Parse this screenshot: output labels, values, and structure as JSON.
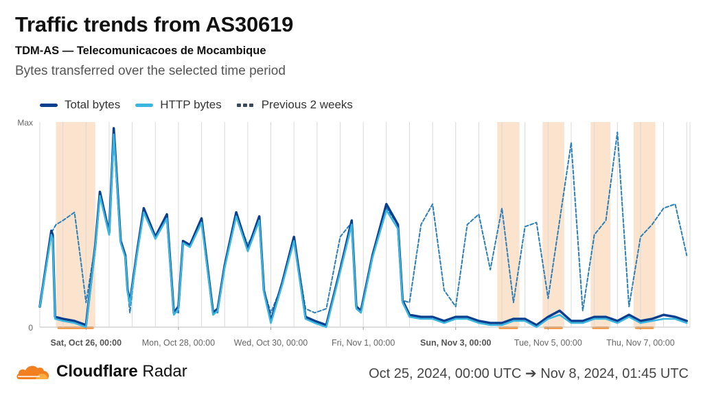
{
  "header": {
    "title": "Traffic trends from AS30619",
    "subtitle": "TDM-AS — Telecomunicacoes de Mocambique",
    "description": "Bytes transferred over the selected time period"
  },
  "legend": {
    "total": "Total bytes",
    "http": "HTTP bytes",
    "previous": "Previous 2 weeks"
  },
  "colors": {
    "total": "#0a3f8f",
    "http": "#39b6e0",
    "previous": "#2a7fb8",
    "outage_shade": "#fbe3cd",
    "outage_bar": "#f39c4b",
    "grid": "#d9d9d9"
  },
  "footer": {
    "brand_bold": "Cloudflare",
    "brand_light": " Radar",
    "range": "Oct 25, 2024, 00:00 UTC ➔ Nov 8, 2024, 01:45 UTC"
  },
  "chart_data": {
    "type": "line",
    "title": "Traffic trends from AS30619",
    "ylabel": "",
    "xlabel": "",
    "y_tick_labels": [
      "Max",
      "0"
    ],
    "ylim": [
      0,
      100
    ],
    "x_unit": "days since Oct 25, 2024 00:00 UTC",
    "xlim": [
      0,
      14.07
    ],
    "x_ticks": [
      {
        "x": 1,
        "label": "Sat, Oct 26, 00:00",
        "bold": true
      },
      {
        "x": 3,
        "label": "Mon, Oct 28, 00:00",
        "bold": false
      },
      {
        "x": 5,
        "label": "Wed, Oct 30, 00:00",
        "bold": false
      },
      {
        "x": 7,
        "label": "Fri, Nov 1, 00:00",
        "bold": false
      },
      {
        "x": 9,
        "label": "Sun, Nov 3, 00:00",
        "bold": true
      },
      {
        "x": 11,
        "label": "Tue, Nov 5, 00:00",
        "bold": false
      },
      {
        "x": 13,
        "label": "Thu, Nov 7, 00:00",
        "bold": false
      }
    ],
    "outage_periods": [
      [
        0.35,
        1.2
      ],
      [
        9.9,
        10.38
      ],
      [
        10.88,
        11.35
      ],
      [
        11.92,
        12.35
      ],
      [
        12.85,
        13.32
      ]
    ],
    "series": [
      {
        "name": "Total bytes",
        "x": [
          0,
          0.25,
          0.28,
          0.33,
          0.5,
          0.75,
          1.0,
          1.2,
          1.3,
          1.5,
          1.6,
          1.75,
          1.85,
          1.9,
          1.95,
          2.1,
          2.25,
          2.5,
          2.75,
          2.9,
          3.0,
          3.1,
          3.25,
          3.5,
          3.75,
          3.85,
          4.0,
          4.25,
          4.5,
          4.75,
          4.85,
          5.0,
          5.25,
          5.5,
          5.75,
          5.85,
          5.95,
          6.2,
          6.5,
          6.75,
          6.85,
          6.95,
          7.2,
          7.5,
          7.75,
          7.85,
          8.0,
          8.25,
          8.5,
          8.75,
          9.0,
          9.25,
          9.5,
          9.75,
          10.0,
          10.25,
          10.5,
          10.75,
          11.0,
          11.25,
          11.5,
          11.75,
          12.0,
          12.25,
          12.5,
          12.75,
          13.0,
          13.25,
          13.5,
          13.75,
          14.0
        ],
        "values": [
          10,
          47,
          45,
          5,
          4,
          3,
          1,
          40,
          66,
          46,
          97,
          42,
          35,
          18,
          12,
          36,
          58,
          44,
          55,
          7,
          10,
          42,
          40,
          53,
          7,
          9,
          30,
          56,
          38,
          54,
          18,
          3,
          22,
          44,
          5,
          4,
          3,
          1,
          28,
          52,
          10,
          8,
          35,
          60,
          50,
          13,
          6,
          5,
          5,
          3,
          5,
          5,
          3,
          2,
          2,
          4,
          4,
          1,
          5,
          8,
          3,
          3,
          5,
          5,
          3,
          6,
          3,
          4,
          6,
          5,
          3
        ]
      },
      {
        "name": "HTTP bytes",
        "x": [
          0,
          0.25,
          0.28,
          0.33,
          0.5,
          0.75,
          1.0,
          1.2,
          1.3,
          1.5,
          1.6,
          1.75,
          1.85,
          1.9,
          1.95,
          2.1,
          2.25,
          2.5,
          2.75,
          2.9,
          3.0,
          3.1,
          3.25,
          3.5,
          3.75,
          3.85,
          4.0,
          4.25,
          4.5,
          4.75,
          4.85,
          5.0,
          5.25,
          5.5,
          5.75,
          5.85,
          5.95,
          6.2,
          6.5,
          6.75,
          6.85,
          6.95,
          7.2,
          7.5,
          7.75,
          7.85,
          8.0,
          8.25,
          8.5,
          8.75,
          9.0,
          9.25,
          9.5,
          9.75,
          10.0,
          10.25,
          10.5,
          10.75,
          11.0,
          11.25,
          11.5,
          11.75,
          12.0,
          12.25,
          12.5,
          12.75,
          13.0,
          13.25,
          13.5,
          13.75,
          14.0
        ],
        "values": [
          10,
          45,
          43,
          4,
          3,
          2,
          0,
          39,
          64,
          45,
          94,
          41,
          34,
          17,
          11,
          35,
          56,
          43,
          53,
          6,
          9,
          41,
          39,
          51,
          6,
          8,
          29,
          54,
          37,
          52,
          17,
          2,
          21,
          42,
          4,
          3,
          2,
          0,
          27,
          50,
          9,
          7,
          34,
          57,
          48,
          12,
          5,
          4,
          4,
          2,
          4,
          4,
          2,
          1,
          1,
          3,
          3,
          0,
          4,
          6,
          2,
          2,
          4,
          4,
          2,
          5,
          2,
          3,
          4,
          4,
          2
        ]
      },
      {
        "name": "Previous 2 weeks",
        "x": [
          0,
          0.25,
          0.35,
          0.5,
          0.75,
          0.9,
          1.0,
          1.2,
          1.3,
          1.5,
          1.6,
          1.75,
          1.85,
          1.9,
          1.95,
          2.1,
          2.25,
          2.5,
          2.75,
          2.9,
          3.0,
          3.1,
          3.25,
          3.5,
          3.75,
          3.85,
          4.0,
          4.25,
          4.5,
          4.75,
          4.85,
          5.0,
          5.25,
          5.5,
          5.75,
          5.85,
          5.95,
          6.2,
          6.5,
          6.75,
          6.85,
          6.95,
          7.2,
          7.5,
          7.75,
          7.85,
          8.0,
          8.25,
          8.5,
          8.75,
          9.0,
          9.25,
          9.5,
          9.75,
          10.0,
          10.25,
          10.5,
          10.75,
          11.0,
          11.25,
          11.5,
          11.75,
          12.0,
          12.25,
          12.5,
          12.75,
          13.0,
          13.25,
          13.5,
          13.75,
          14.0
        ],
        "values": [
          12,
          46,
          50,
          52,
          56,
          30,
          12,
          40,
          64,
          45,
          96,
          42,
          35,
          18,
          7,
          37,
          56,
          44,
          55,
          8,
          7,
          42,
          40,
          52,
          8,
          7,
          30,
          55,
          40,
          52,
          18,
          7,
          21,
          43,
          9,
          8,
          7,
          9,
          44,
          51,
          10,
          8,
          36,
          58,
          50,
          13,
          12,
          50,
          60,
          18,
          10,
          50,
          55,
          28,
          58,
          12,
          49,
          51,
          14,
          52,
          90,
          8,
          45,
          52,
          95,
          10,
          44,
          50,
          58,
          60,
          35
        ]
      }
    ]
  }
}
